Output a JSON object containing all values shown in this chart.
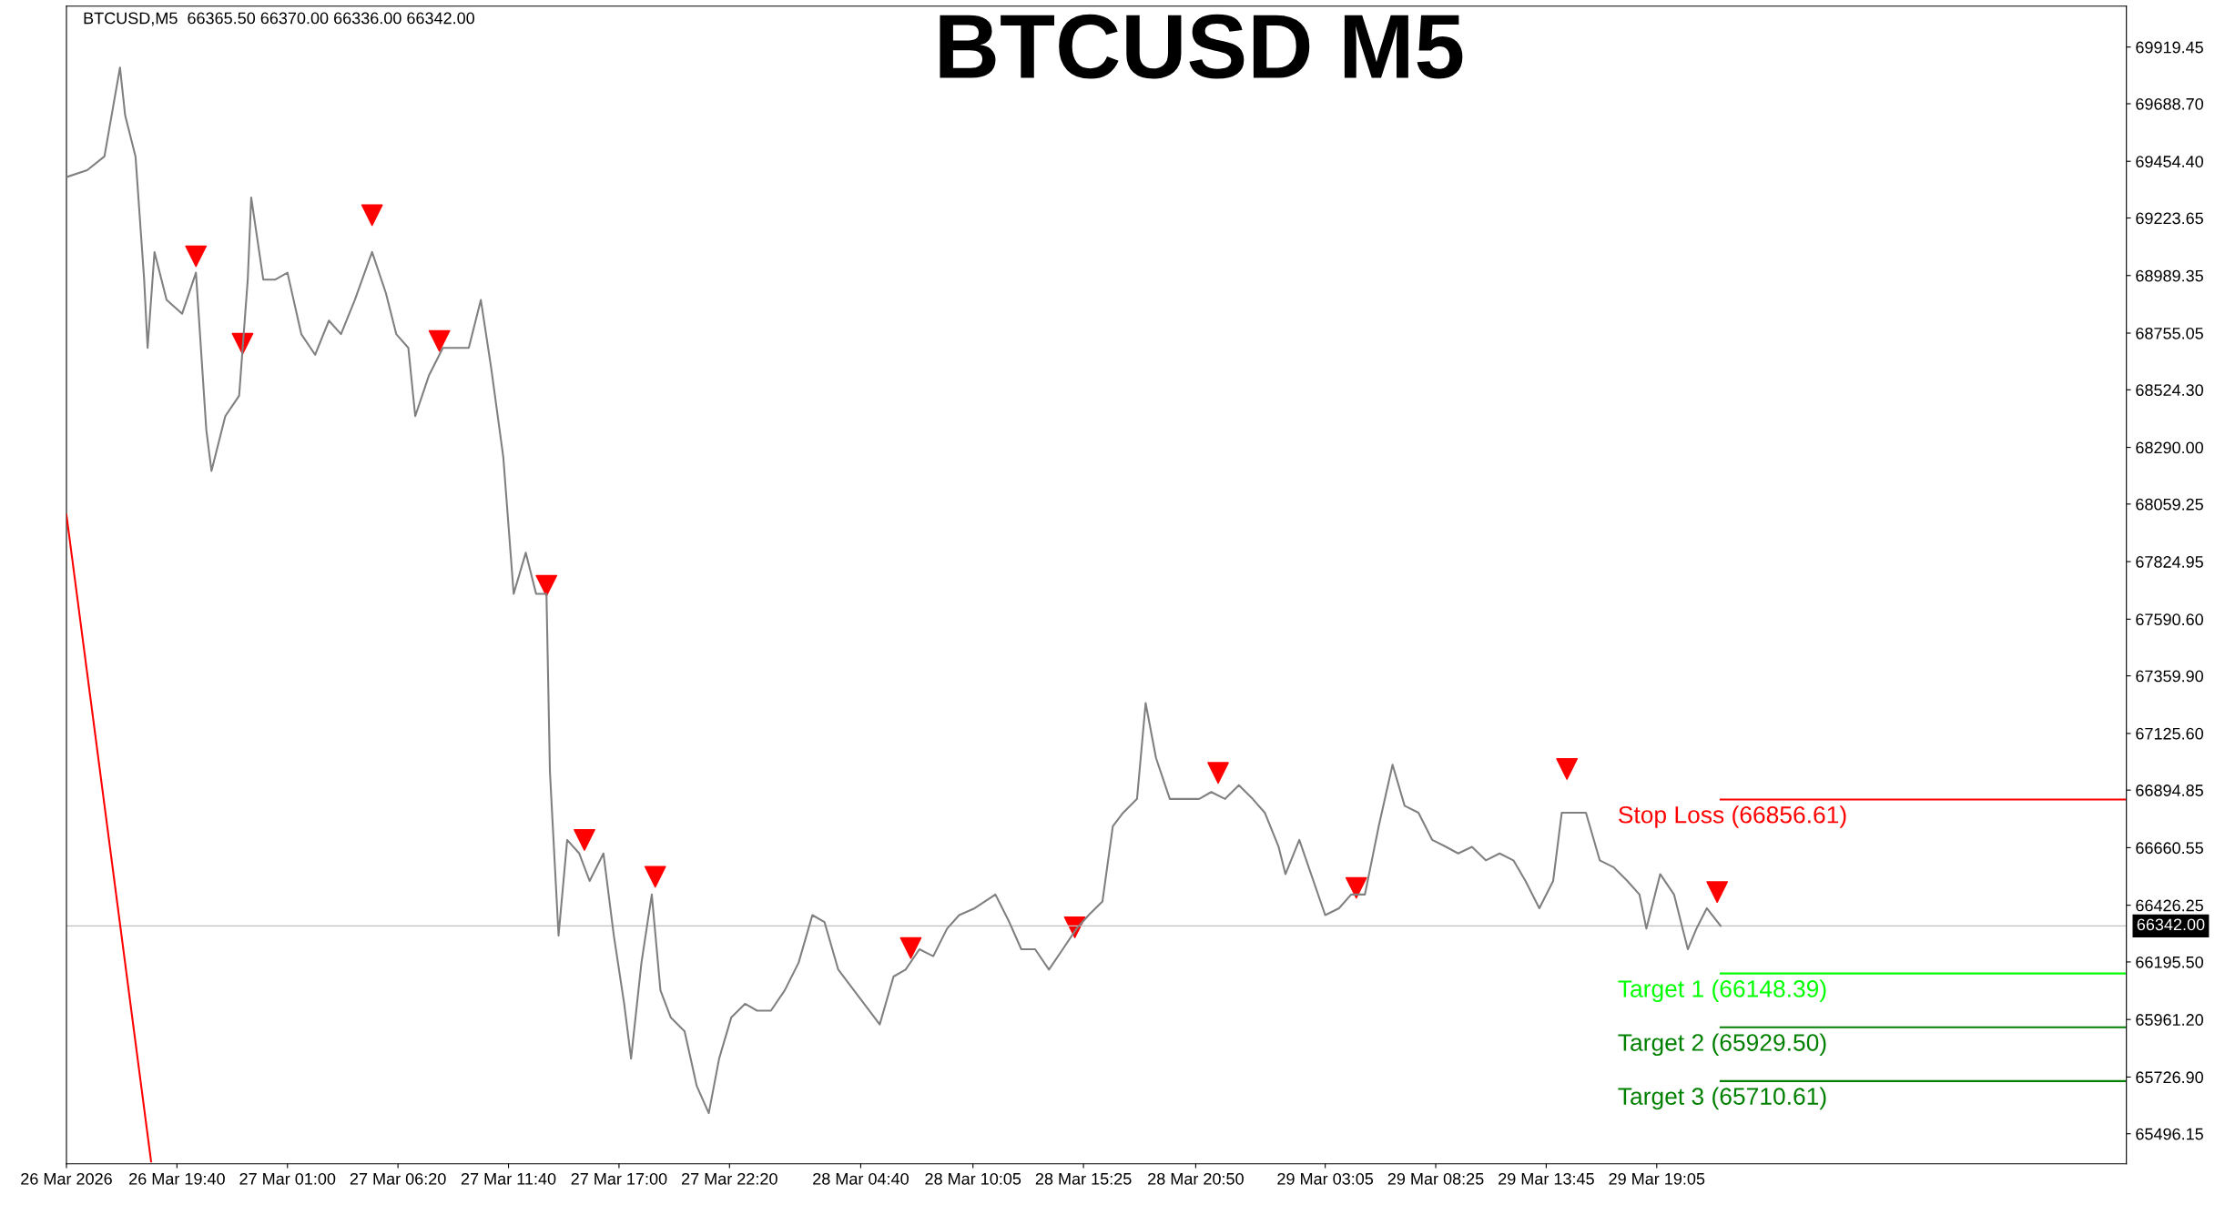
{
  "chart_data": {
    "type": "line",
    "title": "BTCUSD M5",
    "annotations": [
      "BTCUSD,M5  66365.50 66370.00 66336.00 66342.00"
    ],
    "xlim": [
      "2026-03-26T14:20",
      "2026-03-30T17:45"
    ],
    "ylim": [
      65374,
      70086
    ],
    "xticks": [
      {
        "value": "2026-03-26T14:20",
        "label": "26 Mar 2026"
      },
      {
        "value": "2026-03-26T19:40",
        "label": "26 Mar 19:40"
      },
      {
        "value": "2026-03-27T01:00",
        "label": "27 Mar 01:00"
      },
      {
        "value": "2026-03-27T06:20",
        "label": "27 Mar 06:20"
      },
      {
        "value": "2026-03-27T11:40",
        "label": "27 Mar 11:40"
      },
      {
        "value": "2026-03-27T17:00",
        "label": "27 Mar 17:00"
      },
      {
        "value": "2026-03-27T22:20",
        "label": "27 Mar 22:20"
      },
      {
        "value": "2026-03-28T04:40",
        "label": "28 Mar 04:40"
      },
      {
        "value": "2026-03-28T10:05",
        "label": "28 Mar 10:05"
      },
      {
        "value": "2026-03-28T15:25",
        "label": "28 Mar 15:25"
      },
      {
        "value": "2026-03-28T20:50",
        "label": "28 Mar 20:50"
      },
      {
        "value": "2026-03-29T03:05",
        "label": "29 Mar 03:05"
      },
      {
        "value": "2026-03-29T08:25",
        "label": "29 Mar 08:25"
      },
      {
        "value": "2026-03-29T13:45",
        "label": "29 Mar 13:45"
      },
      {
        "value": "2026-03-29T19:05",
        "label": "29 Mar 19:05"
      }
    ],
    "yticks": [
      {
        "value": 69919.45,
        "label": "69919.45"
      },
      {
        "value": 69688.7,
        "label": "69688.70"
      },
      {
        "value": 69454.4,
        "label": "69454.40"
      },
      {
        "value": 69223.65,
        "label": "69223.65"
      },
      {
        "value": 68989.35,
        "label": "68989.35"
      },
      {
        "value": 68755.05,
        "label": "68755.05"
      },
      {
        "value": 68524.3,
        "label": "68524.30"
      },
      {
        "value": 68290.0,
        "label": "68290.00"
      },
      {
        "value": 68059.25,
        "label": "68059.25"
      },
      {
        "value": 67824.95,
        "label": "67824.95"
      },
      {
        "value": 67590.6,
        "label": "67590.60"
      },
      {
        "value": 67359.9,
        "label": "67359.90"
      },
      {
        "value": 67125.6,
        "label": "67125.60"
      },
      {
        "value": 66894.85,
        "label": "66894.85"
      },
      {
        "value": 66660.55,
        "label": "66660.55"
      },
      {
        "value": 66426.25,
        "label": "66426.25"
      },
      {
        "value": 66195.5,
        "label": "66195.50"
      },
      {
        "value": 65961.2,
        "label": "65961.20"
      },
      {
        "value": 65726.9,
        "label": "65726.90"
      },
      {
        "value": 65496.15,
        "label": "65496.15"
      }
    ],
    "series": [
      {
        "color": "#808080",
        "x": [
          "2026-03-26T14:20",
          "2026-03-26T15:20",
          "2026-03-26T16:10",
          "2026-03-26T16:55",
          "2026-03-26T17:10",
          "2026-03-26T17:40",
          "2026-03-26T18:05",
          "2026-03-26T18:15",
          "2026-03-26T18:35",
          "2026-03-26T19:10",
          "2026-03-26T19:55",
          "2026-03-26T20:35",
          "2026-03-26T21:05",
          "2026-03-26T21:20",
          "2026-03-26T22:00",
          "2026-03-26T22:40",
          "2026-03-26T23:05",
          "2026-03-26T23:15",
          "2026-03-26T23:50",
          "2026-03-27T00:25",
          "2026-03-27T01:00",
          "2026-03-27T01:40",
          "2026-03-27T02:20",
          "2026-03-27T03:00",
          "2026-03-27T03:35",
          "2026-03-27T04:15",
          "2026-03-27T05:05",
          "2026-03-27T05:45",
          "2026-03-27T06:15",
          "2026-03-27T06:50",
          "2026-03-27T07:10",
          "2026-03-27T07:50",
          "2026-03-27T08:30",
          "2026-03-27T09:10",
          "2026-03-27T09:45",
          "2026-03-27T10:20",
          "2026-03-27T10:50",
          "2026-03-27T11:25",
          "2026-03-27T11:55",
          "2026-03-27T12:30",
          "2026-03-27T13:00",
          "2026-03-27T13:30",
          "2026-03-27T13:40",
          "2026-03-27T14:05",
          "2026-03-27T14:30",
          "2026-03-27T15:05",
          "2026-03-27T15:35",
          "2026-03-27T16:15",
          "2026-03-27T16:45",
          "2026-03-27T17:15",
          "2026-03-27T17:35",
          "2026-03-27T18:05",
          "2026-03-27T18:35",
          "2026-03-27T19:00",
          "2026-03-27T19:30",
          "2026-03-27T20:10",
          "2026-03-27T20:45",
          "2026-03-27T21:20",
          "2026-03-27T21:50",
          "2026-03-27T22:25",
          "2026-03-27T23:05",
          "2026-03-27T23:40",
          "2026-03-28T00:20",
          "2026-03-28T01:00",
          "2026-03-28T01:40",
          "2026-03-28T02:20",
          "2026-03-28T02:55",
          "2026-03-28T03:35",
          "2026-03-28T05:35",
          "2026-03-28T06:15",
          "2026-03-28T06:50",
          "2026-03-28T07:30",
          "2026-03-28T08:10",
          "2026-03-28T08:50",
          "2026-03-28T09:25",
          "2026-03-28T10:10",
          "2026-03-28T11:10",
          "2026-03-28T11:50",
          "2026-03-28T12:25",
          "2026-03-28T13:05",
          "2026-03-28T13:45",
          "2026-03-28T14:25",
          "2026-03-28T15:05",
          "2026-03-28T15:40",
          "2026-03-28T16:20",
          "2026-03-28T16:50",
          "2026-03-28T17:20",
          "2026-03-28T18:00",
          "2026-03-28T18:25",
          "2026-03-28T18:55",
          "2026-03-28T19:35",
          "2026-03-28T20:15",
          "2026-03-28T21:00",
          "2026-03-28T21:35",
          "2026-03-28T22:15",
          "2026-03-28T22:55",
          "2026-03-28T23:35",
          "2026-03-29T00:10",
          "2026-03-29T00:50",
          "2026-03-29T01:10",
          "2026-03-29T01:50",
          "2026-03-29T03:05",
          "2026-03-29T03:45",
          "2026-03-29T04:20",
          "2026-03-29T05:00",
          "2026-03-29T05:40",
          "2026-03-29T06:20",
          "2026-03-29T06:55",
          "2026-03-29T07:35",
          "2026-03-29T08:15",
          "2026-03-29T08:55",
          "2026-03-29T09:30",
          "2026-03-29T10:10",
          "2026-03-29T10:50",
          "2026-03-29T11:30",
          "2026-03-29T12:10",
          "2026-03-29T12:45",
          "2026-03-29T13:25",
          "2026-03-29T14:05",
          "2026-03-29T14:30",
          "2026-03-29T15:05",
          "2026-03-29T15:40",
          "2026-03-29T16:20",
          "2026-03-29T17:00",
          "2026-03-29T17:40",
          "2026-03-29T18:15",
          "2026-03-29T18:35",
          "2026-03-29T19:15",
          "2026-03-29T19:55",
          "2026-03-29T20:35",
          "2026-03-29T21:00",
          "2026-03-29T21:30",
          "2026-03-29T22:10"
        ],
        "values": [
          69390,
          69418,
          69474,
          69836,
          69641,
          69474,
          68973,
          68695,
          69085,
          68890,
          68834,
          69001,
          68361,
          68194,
          68417,
          68500,
          68973,
          69307,
          68973,
          68973,
          69001,
          68751,
          68667,
          68806,
          68751,
          68890,
          69085,
          68918,
          68751,
          68695,
          68417,
          68584,
          68695,
          68695,
          68695,
          68890,
          68612,
          68250,
          67694,
          67861,
          67694,
          67694,
          66970,
          66303,
          66692,
          66637,
          66525,
          66637,
          66303,
          66025,
          65802,
          66192,
          66470,
          66080,
          65969,
          65913,
          65691,
          65580,
          65802,
          65969,
          66025,
          65997,
          65997,
          66080,
          66192,
          66386,
          66358,
          66164,
          65941,
          66136,
          66164,
          66247,
          66219,
          66331,
          66386,
          66414,
          66470,
          66358,
          66247,
          66247,
          66164,
          66247,
          66331,
          66386,
          66442,
          66748,
          66803,
          66859,
          67249,
          67026,
          66859,
          66859,
          66859,
          66887,
          66859,
          66915,
          66859,
          66803,
          66664,
          66553,
          66692,
          66386,
          66414,
          66470,
          66470,
          66748,
          66998,
          66831,
          66803,
          66692,
          66664,
          66637,
          66664,
          66609,
          66637,
          66609,
          66525,
          66414,
          66525,
          66803,
          66803,
          66803,
          66609,
          66581,
          66525,
          66470,
          66331,
          66553,
          66470,
          66247,
          66331,
          66414,
          66342
        ]
      },
      {
        "type": "scatter",
        "color": "#ff0000",
        "marker": "triangle",
        "x": [
          "2026-03-26T20:35",
          "2026-03-26T22:50",
          "2026-03-27T05:05",
          "2026-03-27T08:20",
          "2026-03-27T13:30",
          "2026-03-27T15:20",
          "2026-03-27T18:45",
          "2026-03-28T07:05",
          "2026-03-28T15:00",
          "2026-03-28T21:55",
          "2026-03-29T04:35",
          "2026-03-29T14:45",
          "2026-03-29T22:00"
        ],
        "values": [
          69068,
          68712,
          69235,
          68723,
          67727,
          66692,
          66542,
          66252,
          66336,
          66965,
          66497,
          66981,
          66480
        ]
      },
      {
        "type": "line",
        "color": "#ff0000",
        "x": [
          "2026-03-26T14:20",
          "2026-03-26T18:25"
        ],
        "values": [
          68016,
          65384
        ]
      }
    ],
    "ref_lines": [
      {
        "axis": "y",
        "value": 66342.0,
        "label": "66342.00",
        "color": "#c0c0c0"
      },
      {
        "axis": "y",
        "value": 66856.61,
        "label": "Stop Loss (66856.61)",
        "color": "#ff0000"
      },
      {
        "axis": "y",
        "value": 66148.39,
        "label": "Target 1 (66148.39)",
        "color": "#00ff00"
      },
      {
        "axis": "y",
        "value": 65929.5,
        "label": "Target 2 (65929.50)",
        "color": "#008000"
      },
      {
        "axis": "y",
        "value": 65710.61,
        "label": "Target 3 (65710.61)",
        "color": "#008000"
      }
    ]
  }
}
